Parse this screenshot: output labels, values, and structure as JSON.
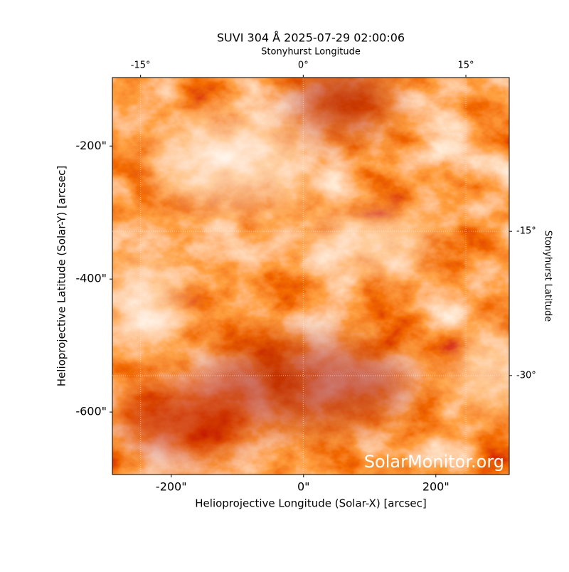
{
  "chart_data": {
    "type": "image",
    "title": "SUVI 304 Å 2025-07-29 02:00:06",
    "xlabel": "Helioprojective Longitude (Solar-X) [arcsec]",
    "ylabel": "Helioprojective Latitude (Solar-Y) [arcsec]",
    "x2label": "Stonyhurst Longitude",
    "y2label": "Stonyhurst Latitude",
    "watermark": "SolarMonitor.org",
    "xlim": [
      -289,
      311
    ],
    "ylim": [
      -694,
      -97
    ],
    "xticks": [
      {
        "value": -200,
        "label": "-200\""
      },
      {
        "value": 0,
        "label": "0\""
      },
      {
        "value": 200,
        "label": "200\""
      }
    ],
    "yticks": [
      {
        "value": -200,
        "label": "-200\""
      },
      {
        "value": -400,
        "label": "-400\""
      },
      {
        "value": -600,
        "label": "-600\""
      }
    ],
    "x2lim": [
      -17.6,
      19.0
    ],
    "x2ticks": [
      {
        "value": -15,
        "label": "-15°"
      },
      {
        "value": 0,
        "label": "0°"
      },
      {
        "value": 15,
        "label": "15°"
      }
    ],
    "y2lim": [
      -40.3,
      1.0
    ],
    "y2ticks": [
      {
        "value": -15,
        "label": "-15°"
      },
      {
        "value": -30,
        "label": "-30°"
      }
    ],
    "grid": true
  }
}
